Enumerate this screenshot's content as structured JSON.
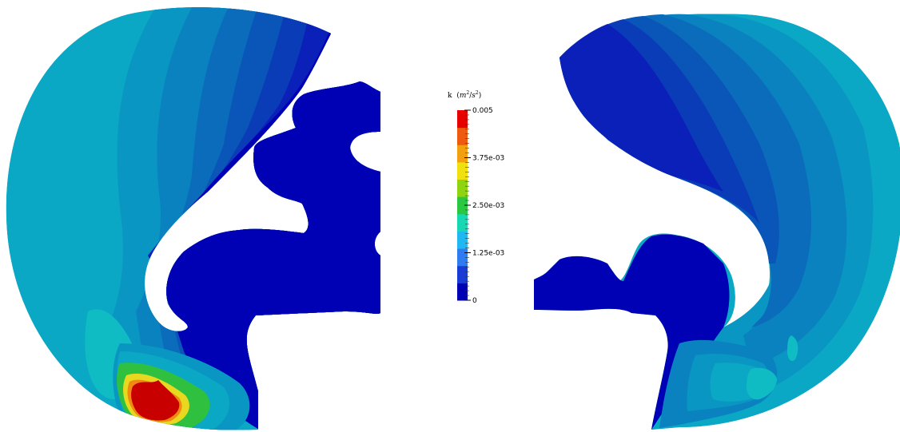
{
  "colorbar": {
    "title_symbol": "k",
    "title_unit_base": "m",
    "title_unit_base_exp": "2",
    "title_unit_denom": "s",
    "title_unit_denom_exp": "2",
    "ticks": [
      {
        "value": 0.005,
        "label": "0.005"
      },
      {
        "value": 0.00375,
        "label": "3.75e-03"
      },
      {
        "value": 0.0025,
        "label": "2.50e-03"
      },
      {
        "value": 0.00125,
        "label": "1.25e-03"
      },
      {
        "value": 0,
        "label": "0"
      }
    ],
    "range": [
      0,
      0.005
    ],
    "colormap": [
      "#0000b4",
      "#1a3cd6",
      "#2e7cf0",
      "#1fb8f0",
      "#18d8b4",
      "#2ac840",
      "#8ed410",
      "#f0e010",
      "#f2a010",
      "#ee5a10",
      "#e60000"
    ]
  },
  "field_colors": {
    "deep": "#0000b4",
    "band1": "#0a20b8",
    "band2": "#0b3cb8",
    "band3": "#0a55b8",
    "band4": "#0a6cbb",
    "band5": "#0a82bf",
    "band6": "#0a96c3",
    "band7": "#0aa8c4",
    "band8": "#10bcc4",
    "green": "#30c040",
    "yellow": "#e8d820",
    "orange": "#f08a10",
    "red": "#c80000"
  }
}
